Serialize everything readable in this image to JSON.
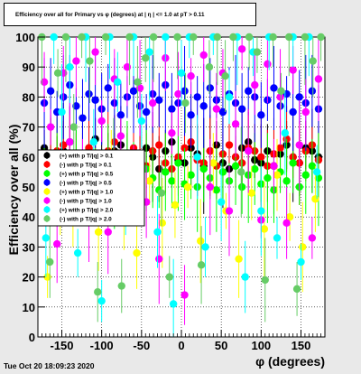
{
  "chart_data": {
    "type": "scatter",
    "title": "Efficiency over all for Primary vs φ (degrees) at | η | <= 1.0 at pT > 0.11",
    "xlabel": "φ (degrees)",
    "ylabel": "Efficiency over all (%)",
    "xlim": [
      -180,
      180
    ],
    "ylim": [
      0,
      100
    ],
    "x_ticks": [
      -150,
      -100,
      -50,
      0,
      50,
      100,
      150
    ],
    "y_ticks": [
      0,
      10,
      20,
      30,
      40,
      50,
      60,
      70,
      80,
      90,
      100
    ],
    "grid": true,
    "legend_position": "middle-left",
    "series": [
      {
        "name": "(+) with p T/|q| > 0.1",
        "color": "#000000",
        "x": [
          -172,
          -164,
          -156,
          -148,
          -140,
          -132,
          -124,
          -116,
          -108,
          -100,
          -92,
          -84,
          -76,
          -68,
          -60,
          -52,
          -44,
          -36,
          -28,
          -20,
          -12,
          -4,
          4,
          12,
          20,
          28,
          36,
          44,
          52,
          60,
          68,
          76,
          84,
          92,
          100,
          108,
          116,
          124,
          132,
          140,
          148,
          156,
          164,
          172
        ],
        "y": [
          63,
          60,
          58,
          62,
          65,
          61,
          57,
          63,
          66,
          60,
          58,
          62,
          64,
          59,
          57,
          61,
          63,
          60,
          56,
          62,
          65,
          59,
          58,
          63,
          61,
          57,
          62,
          64,
          58,
          56,
          60,
          63,
          65,
          59,
          58,
          62,
          57,
          61,
          64,
          60,
          58,
          63,
          62,
          60
        ]
      },
      {
        "name": "(-) with p T/|q| > 0.1",
        "color": "#ff0000",
        "x": [
          -172,
          -164,
          -156,
          -148,
          -140,
          -132,
          -124,
          -116,
          -108,
          -100,
          -92,
          -84,
          -76,
          -68,
          -60,
          -52,
          -44,
          -36,
          -28,
          -20,
          -12,
          -4,
          4,
          12,
          20,
          28,
          36,
          44,
          52,
          60,
          68,
          76,
          84,
          92,
          100,
          108,
          116,
          124,
          132,
          140,
          148,
          156,
          164,
          172
        ],
        "y": [
          60,
          58,
          62,
          64,
          59,
          57,
          61,
          63,
          60,
          56,
          62,
          65,
          59,
          58,
          63,
          61,
          57,
          62,
          64,
          58,
          56,
          60,
          63,
          65,
          59,
          58,
          62,
          57,
          61,
          64,
          60,
          58,
          63,
          62,
          60,
          57,
          61,
          63,
          66,
          60,
          58,
          62,
          64,
          59
        ]
      },
      {
        "name": "(+) with p T/|q| > 0.5",
        "color": "#00ff00",
        "x": [
          -172,
          -164,
          -156,
          -148,
          -140,
          -132,
          -124,
          -116,
          -108,
          -100,
          -92,
          -84,
          -76,
          -68,
          -60,
          -52,
          -44,
          -36,
          -28,
          -20,
          -12,
          -4,
          4,
          12,
          20,
          28,
          36,
          44,
          52,
          60,
          68,
          76,
          84,
          92,
          100,
          108,
          116,
          124,
          132,
          140,
          148,
          156,
          164,
          172
        ],
        "y": [
          55,
          52,
          58,
          50,
          54,
          57,
          49,
          53,
          56,
          51,
          55,
          48,
          52,
          57,
          54,
          50,
          56,
          53,
          49,
          55,
          52,
          58,
          51,
          54,
          50,
          56,
          53,
          49,
          55,
          52,
          57,
          50,
          54,
          56,
          51,
          53,
          49,
          55,
          52,
          58,
          50,
          54,
          57,
          53
        ]
      },
      {
        "name": "(-) with p T/|q| > 0.5",
        "color": "#0000ff",
        "x": [
          -172,
          -164,
          -156,
          -148,
          -140,
          -132,
          -124,
          -116,
          -108,
          -100,
          -92,
          -84,
          -76,
          -68,
          -60,
          -52,
          -44,
          -36,
          -28,
          -20,
          -12,
          -4,
          4,
          12,
          20,
          28,
          36,
          44,
          52,
          60,
          68,
          76,
          84,
          92,
          100,
          108,
          116,
          124,
          132,
          140,
          148,
          156,
          164,
          172
        ],
        "y": [
          78,
          82,
          75,
          80,
          84,
          77,
          73,
          81,
          79,
          76,
          83,
          78,
          74,
          80,
          82,
          77,
          75,
          81,
          79,
          84,
          76,
          78,
          82,
          74,
          80,
          77,
          83,
          79,
          75,
          81,
          78,
          76,
          82,
          80,
          74,
          79,
          83,
          77,
          81,
          75,
          80,
          78,
          82,
          76
        ]
      },
      {
        "name": "(+) with p T/|q| > 1.0",
        "color": "#ffff00",
        "x": [
          -168,
          -152,
          -136,
          -120,
          -104,
          -88,
          -72,
          -56,
          -40,
          -24,
          -8,
          8,
          24,
          40,
          56,
          72,
          88,
          104,
          120,
          136,
          152,
          168
        ],
        "y": [
          20,
          48,
          40,
          55,
          35,
          60,
          45,
          28,
          52,
          38,
          44,
          50,
          32,
          58,
          42,
          26,
          48,
          36,
          54,
          40,
          30,
          46
        ]
      },
      {
        "name": "(-) with p T/|q| > 1.0",
        "color": "#ff00ff",
        "x": [
          -172,
          -164,
          -156,
          -148,
          -140,
          -132,
          -124,
          -116,
          -108,
          -100,
          -92,
          -84,
          -76,
          -68,
          -60,
          -52,
          -44,
          -36,
          -28,
          -20,
          -12,
          -4,
          4,
          12,
          20,
          28,
          36,
          44,
          52,
          60,
          68,
          76,
          84,
          92,
          100,
          108,
          116,
          124,
          132,
          140,
          148,
          156,
          164,
          172
        ],
        "y": [
          85,
          70,
          31,
          88,
          65,
          92,
          58,
          40,
          95,
          72,
          35,
          86,
          67,
          90,
          55,
          83,
          45,
          78,
          26,
          93,
          68,
          81,
          14,
          87,
          60,
          94,
          50,
          76,
          88,
          42,
          71,
          96,
          62,
          84,
          39,
          91,
          57,
          80,
          38,
          89,
          64,
          75,
          33,
          86
        ]
      },
      {
        "name": "(+) with p T/|q| > 2.0",
        "color": "#00ffff",
        "x": [
          -170,
          -160,
          -150,
          -140,
          -130,
          -120,
          -110,
          -100,
          -90,
          -80,
          -70,
          -60,
          -50,
          -40,
          -30,
          -20,
          -10,
          0,
          10,
          20,
          30,
          40,
          50,
          60,
          70,
          80,
          90,
          100,
          110,
          120,
          130,
          140,
          150,
          160,
          170
        ],
        "y": [
          33,
          100,
          75,
          90,
          28,
          100,
          65,
          12,
          100,
          85,
          40,
          100,
          72,
          95,
          35,
          100,
          11,
          88,
          100,
          60,
          30,
          100,
          45,
          80,
          100,
          20,
          95,
          42,
          100,
          33,
          68,
          100,
          25,
          100,
          55
        ]
      },
      {
        "name": "(-) with p T/|q| > 2.0",
        "color": "#66cc66",
        "x": [
          -175,
          -165,
          -155,
          -145,
          -135,
          -125,
          -115,
          -105,
          -95,
          -85,
          -75,
          -65,
          -55,
          -45,
          -35,
          -25,
          -15,
          -5,
          5,
          15,
          25,
          35,
          45,
          55,
          65,
          75,
          85,
          95,
          105,
          115,
          125,
          135,
          145,
          155,
          165,
          175
        ],
        "y": [
          100,
          25,
          88,
          100,
          70,
          100,
          92,
          15,
          100,
          60,
          17,
          100,
          85,
          93,
          100,
          48,
          20,
          100,
          78,
          100,
          24,
          90,
          100,
          87,
          100,
          55,
          100,
          95,
          19,
          100,
          82,
          100,
          16,
          100,
          92,
          100
        ]
      }
    ]
  }
}
